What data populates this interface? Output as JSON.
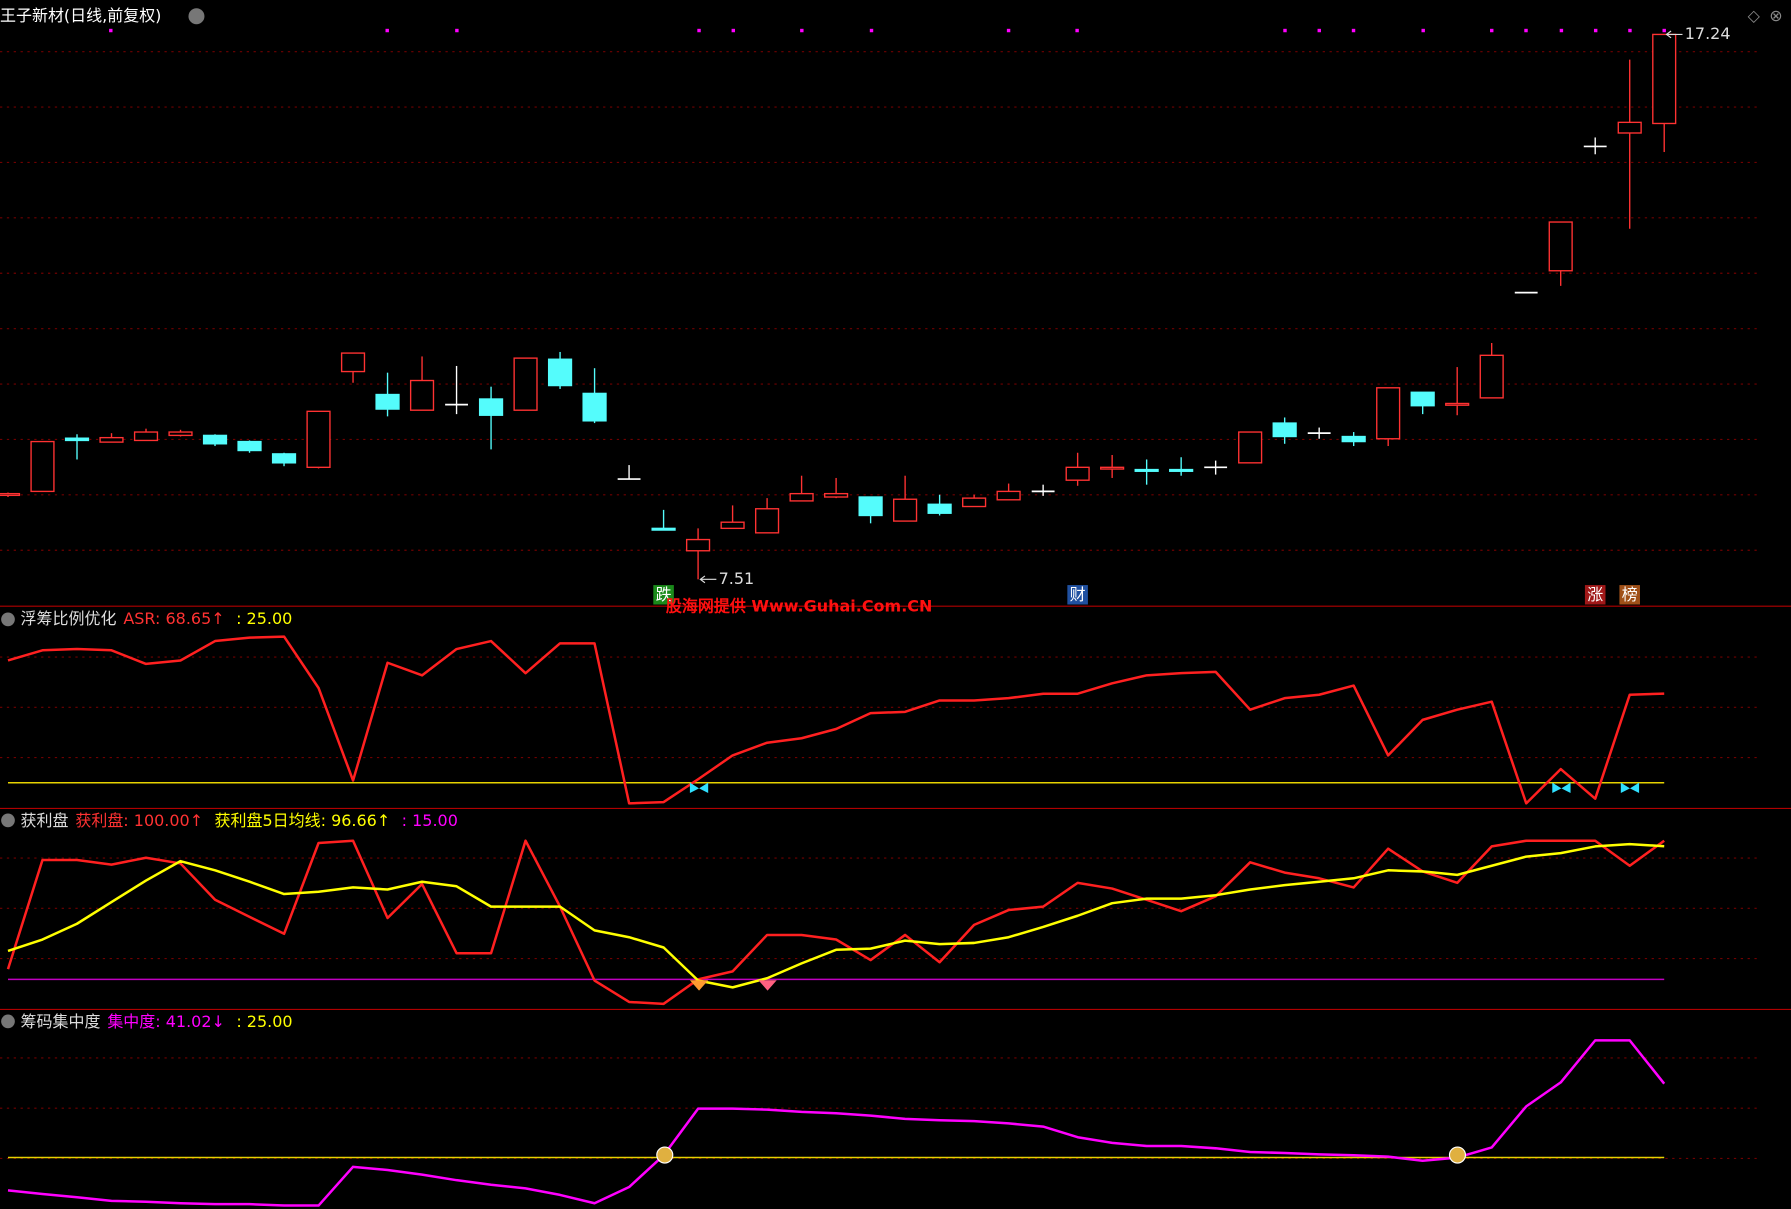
{
  "chart_data": [
    {
      "type": "candlestick",
      "title": "王子新材(日线,前复权)",
      "up_color": "#ff3232",
      "down_color": "#54fcfc",
      "flat_color": "#ffffff",
      "open": [
        9.02,
        9.08,
        10.03,
        9.96,
        9.99,
        10.08,
        10.08,
        9.97,
        9.75,
        9.51,
        11.22,
        10.81,
        10.53,
        10.63,
        10.73,
        10.53,
        11.44,
        10.83,
        9.3,
        8.42,
        8.02,
        8.42,
        8.34,
        8.91,
        8.98,
        8.98,
        8.55,
        8.85,
        8.81,
        8.93,
        9.08,
        9.28,
        9.5,
        9.47,
        9.47,
        9.51,
        9.59,
        10.3,
        10.12,
        10.06,
        10.02,
        10.85,
        10.63,
        10.75,
        12.63,
        13.02,
        15.24,
        15.48,
        15.65
      ],
      "high": [
        9.06,
        9.97,
        10.1,
        10.12,
        10.2,
        10.18,
        10.1,
        9.99,
        9.77,
        10.51,
        11.55,
        11.2,
        11.49,
        11.32,
        10.95,
        11.46,
        11.57,
        11.28,
        9.55,
        8.75,
        8.42,
        8.83,
        8.96,
        9.36,
        9.32,
        8.98,
        9.36,
        9.02,
        9.02,
        9.22,
        9.2,
        9.77,
        9.73,
        9.65,
        9.69,
        9.63,
        10.14,
        10.4,
        10.22,
        10.14,
        10.93,
        10.85,
        11.3,
        11.73,
        12.63,
        13.89,
        15.4,
        16.79,
        17.24
      ],
      "low": [
        8.98,
        9.08,
        9.65,
        9.96,
        9.98,
        10.06,
        9.89,
        9.77,
        9.53,
        9.49,
        11.02,
        10.42,
        10.53,
        10.46,
        9.83,
        10.53,
        10.91,
        10.3,
        9.3,
        8.4,
        7.51,
        8.42,
        8.34,
        8.91,
        8.96,
        8.51,
        8.55,
        8.65,
        8.81,
        8.93,
        9.0,
        9.18,
        9.32,
        9.2,
        9.36,
        9.38,
        9.59,
        9.93,
        10.02,
        9.89,
        9.89,
        10.46,
        10.44,
        10.75,
        12.63,
        12.75,
        15.1,
        13.77,
        15.14
      ],
      "close": [
        9.04,
        9.97,
        9.99,
        10.04,
        10.14,
        10.14,
        9.93,
        9.81,
        9.59,
        10.51,
        11.55,
        10.55,
        11.06,
        10.63,
        10.44,
        11.46,
        10.97,
        10.34,
        9.3,
        8.4,
        8.22,
        8.53,
        8.77,
        9.04,
        9.04,
        8.65,
        8.94,
        8.69,
        8.96,
        9.08,
        9.08,
        9.51,
        9.51,
        9.46,
        9.46,
        9.51,
        10.14,
        10.06,
        10.12,
        9.97,
        10.93,
        10.61,
        10.65,
        11.51,
        12.63,
        13.89,
        15.24,
        15.67,
        17.24
      ],
      "ylim": [
        7.04,
        17.85
      ],
      "low_label": "7.51",
      "high_label": "17.24",
      "badges": [
        "跌",
        "财",
        "涨",
        "榜"
      ],
      "watermark": "股海网提供 Www.Guhai.Com.CN"
    },
    {
      "type": "line",
      "title": "浮筹比例优化",
      "ylim": [
        12.7,
        111.2
      ],
      "legend": [
        {
          "text": "ASR: 68.65↑",
          "color": "#ff3232"
        },
        {
          "text": ": 25.00",
          "color": "#ffff00"
        }
      ],
      "series": [
        {
          "name": "ASR",
          "color": "#ff2020",
          "values": [
            84.9,
            89.9,
            90.5,
            89.9,
            83.2,
            84.9,
            94.4,
            96.1,
            96.6,
            71.4,
            26.1,
            83.8,
            77.6,
            90.5,
            94.4,
            78.7,
            93.3,
            93.3,
            14.9,
            15.5,
            26.7,
            38.4,
            44.6,
            46.8,
            51.3,
            59.1,
            59.7,
            65.3,
            65.3,
            66.4,
            68.6,
            68.6,
            73.7,
            77.6,
            78.7,
            79.3,
            60.8,
            66.4,
            68.1,
            72.6,
            38.4,
            55.8,
            60.8,
            64.7,
            14.9,
            31.7,
            17.2,
            68.1,
            68.65
          ]
        }
      ],
      "hlines": [
        {
          "value": 25,
          "color": "#e6d200"
        }
      ]
    },
    {
      "type": "line",
      "title": "获利盘",
      "ylim": [
        -3.1,
        119.5
      ],
      "legend": [
        {
          "text": "获利盘: 100.00↑",
          "color": "#ff3232"
        },
        {
          "text": "获利盘5日均线: 96.66↑",
          "color": "#ffff00"
        },
        {
          "text": ": 15.00",
          "color": "#ff00ff"
        }
      ],
      "series": [
        {
          "name": "获利盘",
          "color": "#ff2020",
          "values": [
            21.3,
            88.2,
            88.2,
            85.4,
            89.6,
            86.1,
            63.8,
            53.3,
            42.9,
            98.6,
            100,
            52.6,
            73.5,
            31.0,
            31.0,
            100,
            59.6,
            14.3,
            1.1,
            0,
            15.0,
            19.9,
            42.2,
            42.2,
            39.4,
            26.8,
            42.2,
            25.5,
            48.4,
            57.5,
            59.6,
            74.2,
            70.7,
            63.8,
            56.8,
            65.9,
            86.8,
            80.5,
            77.0,
            71.4,
            95.1,
            81.2,
            74.2,
            96.5,
            100,
            100,
            100,
            84.7,
            100
          ]
        },
        {
          "name": "获利盘5日均线",
          "color": "#ffff00",
          "values": [
            32.4,
            39.4,
            49.1,
            62.4,
            75.6,
            87.5,
            81.9,
            74.9,
            67.3,
            68.7,
            71.4,
            70.1,
            74.9,
            72.1,
            59.6,
            59.6,
            59.6,
            45.0,
            40.8,
            34.5,
            14.3,
            10.1,
            15.7,
            24.8,
            33.1,
            33.8,
            38.7,
            36.6,
            37.3,
            40.8,
            47.1,
            54.0,
            61.7,
            64.5,
            64.5,
            66.6,
            70.1,
            72.8,
            74.9,
            77.0,
            81.9,
            81.2,
            79.1,
            84.7,
            90.3,
            92.4,
            96.5,
            97.9,
            96.66
          ]
        }
      ],
      "hlines": [
        {
          "value": 15,
          "color": "#c000c0"
        }
      ]
    },
    {
      "type": "line",
      "title": "筹码集中度",
      "ylim": [
        13.9,
        57.0
      ],
      "legend": [
        {
          "text": "集中度: 41.02↓",
          "color": "#ff00ff"
        },
        {
          "text": ": 25.00",
          "color": "#ffff00"
        }
      ],
      "series": [
        {
          "name": "集中度",
          "color": "#ff00ff",
          "values": [
            17.9,
            17.1,
            16.4,
            15.6,
            15.4,
            15.1,
            14.9,
            14.9,
            14.6,
            14.6,
            23.0,
            22.3,
            21.3,
            20.1,
            19.1,
            18.3,
            16.9,
            15.1,
            18.6,
            25.5,
            35.6,
            35.6,
            35.4,
            34.9,
            34.6,
            34.1,
            33.4,
            33.1,
            32.9,
            32.4,
            31.7,
            29.4,
            28.2,
            27.5,
            27.5,
            27.0,
            26.2,
            26.0,
            25.7,
            25.5,
            25.2,
            24.3,
            25.0,
            27.2,
            36.1,
            41.3,
            50.4,
            50.4,
            41.02
          ]
        }
      ],
      "hlines": [
        {
          "value": 25,
          "color": "#e6d200"
        }
      ]
    }
  ]
}
